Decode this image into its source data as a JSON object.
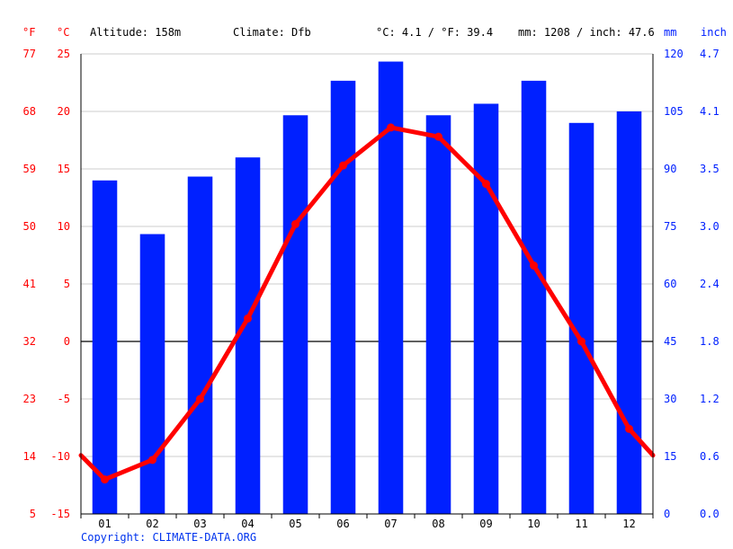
{
  "header": {
    "unit_f": "°F",
    "unit_c": "°C",
    "altitude": "Altitude: 158m",
    "climate": "Climate: Dfb",
    "temp_avg": "°C: 4.1 / °F: 39.4",
    "precip_total": "mm: 1208 / inch: 47.6",
    "unit_mm": "mm",
    "unit_inch": "inch"
  },
  "colors": {
    "temperature": "#ff0000",
    "precipitation": "#0020ff",
    "grid": "#cccccc",
    "zero_line": "#000000",
    "copyright": "#0033ee"
  },
  "chart_data": {
    "type": "bar",
    "categories": [
      "01",
      "02",
      "03",
      "04",
      "05",
      "06",
      "07",
      "08",
      "09",
      "10",
      "11",
      "12"
    ],
    "series": [
      {
        "type": "bar",
        "axis": "right",
        "values": [
          87,
          73,
          88,
          93,
          104,
          113,
          118,
          104,
          107,
          113,
          102,
          105
        ]
      },
      {
        "type": "line",
        "axis": "left",
        "values": [
          -12.0,
          -10.3,
          -5.0,
          2.0,
          10.2,
          15.3,
          18.6,
          17.8,
          13.7,
          6.6,
          0.0,
          -7.6
        ],
        "start_value": -9.9,
        "end_value": -9.9
      }
    ],
    "y_left_celsius": {
      "ticks": [
        "25",
        "20",
        "15",
        "10",
        "5",
        "0",
        "-5",
        "-10",
        "-15"
      ],
      "range": [
        -15,
        25
      ]
    },
    "y_left_fahrenheit": {
      "ticks": [
        "77",
        "68",
        "59",
        "50",
        "41",
        "32",
        "23",
        "14",
        "5"
      ]
    },
    "y_right_mm": {
      "ticks": [
        "120",
        "105",
        "90",
        "75",
        "60",
        "45",
        "30",
        "15",
        "0"
      ],
      "range": [
        0,
        120
      ]
    },
    "y_right_inch": {
      "ticks": [
        "4.7",
        "4.1",
        "3.5",
        "3.0",
        "2.4",
        "1.8",
        "1.2",
        "0.6",
        "0.0"
      ]
    },
    "grid": true
  },
  "footer": {
    "copyright": "Copyright: CLIMATE-DATA.ORG"
  }
}
